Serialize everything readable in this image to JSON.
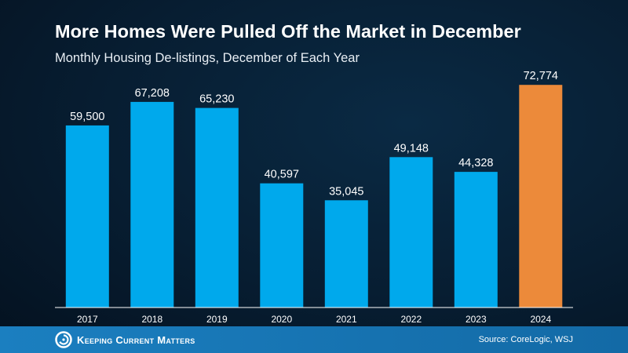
{
  "header": {
    "title": "More Homes Were Pulled Off the Market in December",
    "subtitle": "Monthly Housing De-listings, December of Each Year"
  },
  "footer": {
    "logo_text": "Keeping Current Matters",
    "source": "Source: CoreLogic, WSJ"
  },
  "colors": {
    "bar": "#00a9ec",
    "highlight_bar": "#ec8a3a",
    "axis": "#ffffff",
    "label": "#ffffff"
  },
  "chart_data": {
    "type": "bar",
    "title": "More Homes Were Pulled Off the Market in December",
    "subtitle": "Monthly Housing De-listings, December of Each Year",
    "categories": [
      "2017",
      "2018",
      "2019",
      "2020",
      "2021",
      "2022",
      "2023",
      "2024"
    ],
    "values": [
      59500,
      67208,
      65230,
      40597,
      35045,
      49148,
      44328,
      72774
    ],
    "value_labels": [
      "59,500",
      "67,208",
      "65,230",
      "40,597",
      "35,045",
      "49,148",
      "44,328",
      "72,774"
    ],
    "highlight_index": 7,
    "ylim": [
      0,
      80000
    ],
    "xlabel": "",
    "ylabel": "",
    "grid": false,
    "legend": "none"
  }
}
